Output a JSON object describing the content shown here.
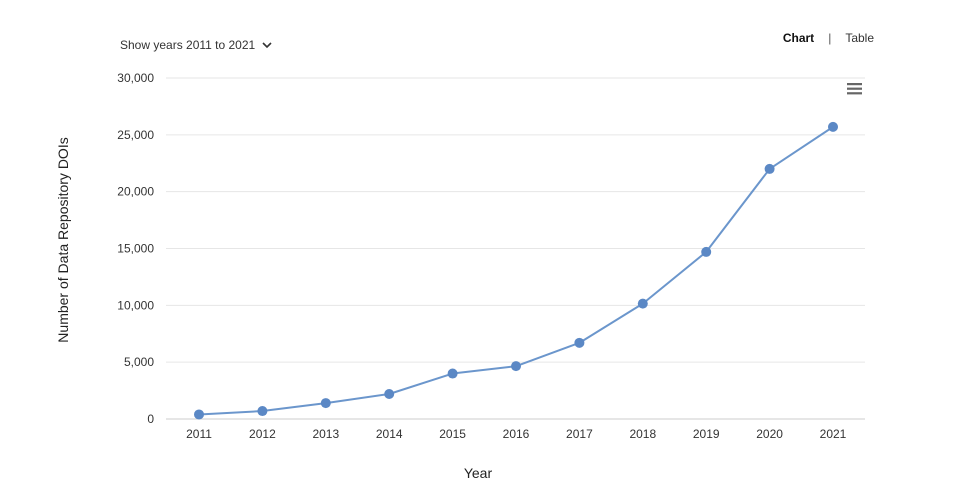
{
  "controls": {
    "year_filter_label": "Show years 2011 to 2021",
    "view_chart_label": "Chart",
    "view_separator": "|",
    "view_table_label": "Table",
    "menu_icon": "hamburger-menu-icon"
  },
  "chart_data": {
    "type": "line",
    "categories": [
      "2011",
      "2012",
      "2013",
      "2014",
      "2015",
      "2016",
      "2017",
      "2018",
      "2019",
      "2020",
      "2021"
    ],
    "series": [
      {
        "values": [
          400,
          700,
          1400,
          2200,
          4000,
          4650,
          6700,
          10150,
          14700,
          22000,
          25700
        ]
      }
    ],
    "xlabel": "Year",
    "ylabel": "Number of Data Repository DOIs",
    "ylim": [
      0,
      30000
    ],
    "yticks": [
      0,
      5000,
      10000,
      15000,
      20000,
      25000,
      30000
    ],
    "ytick_labels": [
      "0",
      "5,000",
      "10,000",
      "15,000",
      "20,000",
      "25,000",
      "30,000"
    ],
    "grid": true,
    "line_color": "#6b96cc",
    "marker_color": "#5b88c5",
    "grid_color": "#e6e6e6"
  }
}
